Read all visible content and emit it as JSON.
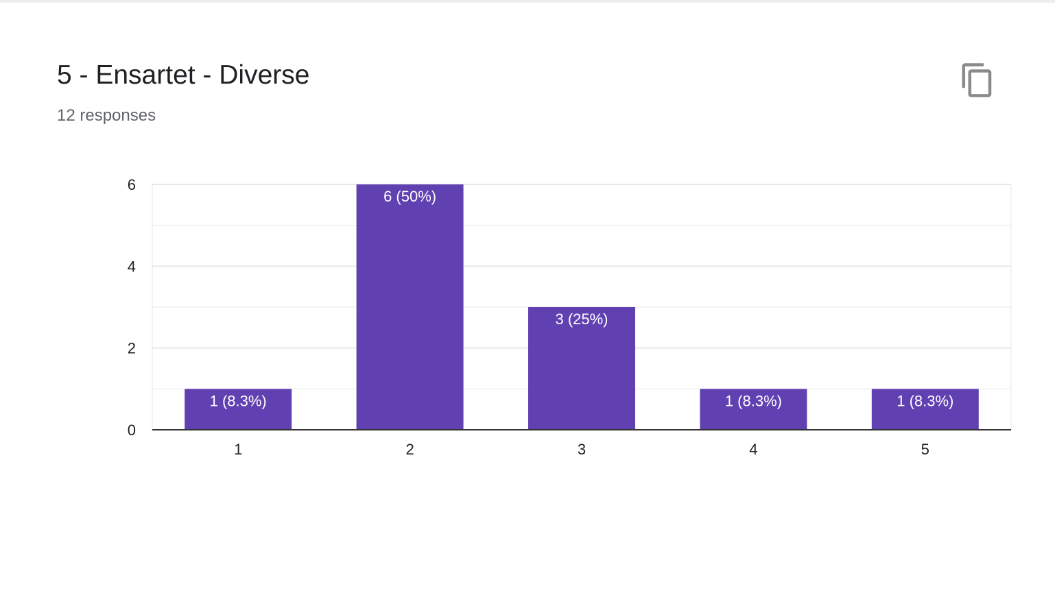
{
  "question": {
    "title": "5 - Ensartet - Diverse",
    "response_count": "12 responses"
  },
  "icons": {
    "copy": "copy-icon"
  },
  "colors": {
    "bar": "#6141b2",
    "gridline": "#e8e8e8",
    "baseline": "#333333"
  },
  "chart_data": {
    "type": "bar",
    "categories": [
      "1",
      "2",
      "3",
      "4",
      "5"
    ],
    "values": [
      1,
      6,
      3,
      1,
      1
    ],
    "data_labels": [
      "1 (8.3%)",
      "6 (50%)",
      "3 (25%)",
      "1 (8.3%)",
      "1 (8.3%)"
    ],
    "y_ticks": [
      "0",
      "2",
      "4",
      "6"
    ],
    "ylim": [
      0,
      6
    ],
    "grid": true,
    "legend": "none"
  }
}
